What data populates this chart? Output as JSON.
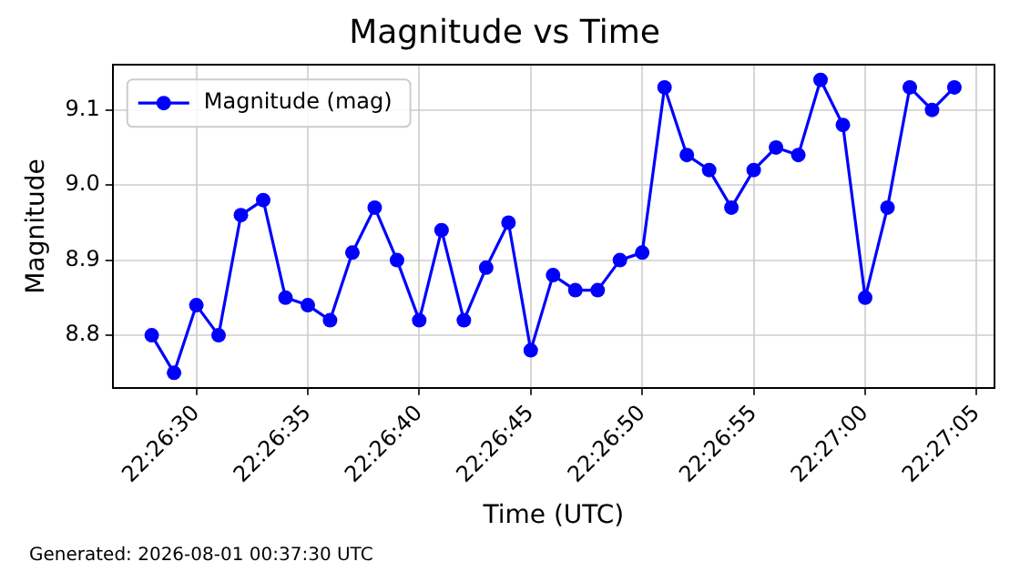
{
  "chart_data": {
    "type": "line",
    "title": "Magnitude vs Time",
    "xlabel": "Time (UTC)",
    "ylabel": "Magnitude",
    "x": [
      22.441111,
      22.441389,
      22.441667,
      22.441944,
      22.442222,
      22.4425,
      22.442778,
      22.443056,
      22.443333,
      22.443611,
      22.443889,
      22.444167,
      22.444444,
      22.444722,
      22.445,
      22.445278,
      22.445556,
      22.445833,
      22.446111,
      22.446389,
      22.446667,
      22.446944,
      22.447222,
      22.4475,
      22.447778,
      22.448056,
      22.448333,
      22.448611,
      22.448889,
      22.449167,
      22.449444,
      22.449722,
      22.45,
      22.450278,
      22.450556,
      22.450833,
      22.451111
    ],
    "series": [
      {
        "name": "Magnitude (mag)",
        "color": "#0000ff",
        "values": [
          8.8,
          8.75,
          8.84,
          8.8,
          8.96,
          8.98,
          8.85,
          8.84,
          8.82,
          8.91,
          8.97,
          8.9,
          8.82,
          8.94,
          8.82,
          8.89,
          8.95,
          8.78,
          8.88,
          8.86,
          8.86,
          8.9,
          8.91,
          9.13,
          9.04,
          9.02,
          8.97,
          9.02,
          9.05,
          9.04,
          9.14,
          9.08,
          8.85,
          8.97,
          9.13,
          9.1,
          9.13
        ]
      }
    ],
    "xlim": [
      22.440625,
      22.451611
    ],
    "xticks": [
      {
        "value": 22.441667,
        "label": "22:26:30"
      },
      {
        "value": 22.443056,
        "label": "22:26:35"
      },
      {
        "value": 22.444444,
        "label": "22:26:40"
      },
      {
        "value": 22.445833,
        "label": "22:26:45"
      },
      {
        "value": 22.447222,
        "label": "22:26:50"
      },
      {
        "value": 22.448611,
        "label": "22:26:55"
      },
      {
        "value": 22.45,
        "label": "22:27:00"
      },
      {
        "value": 22.451389,
        "label": "22:27:05"
      }
    ],
    "ylim": [
      8.73,
      9.16
    ],
    "yticks": [
      {
        "value": 8.8,
        "label": "8.8"
      },
      {
        "value": 8.9,
        "label": "8.9"
      },
      {
        "value": 9.0,
        "label": "9.0"
      },
      {
        "value": 9.1,
        "label": "9.1"
      }
    ],
    "grid": true,
    "legend": "top left",
    "marker": "circle",
    "line_style": "solid",
    "annotations": [
      "Generated: 2026-08-01 00:37:30 UTC"
    ]
  }
}
